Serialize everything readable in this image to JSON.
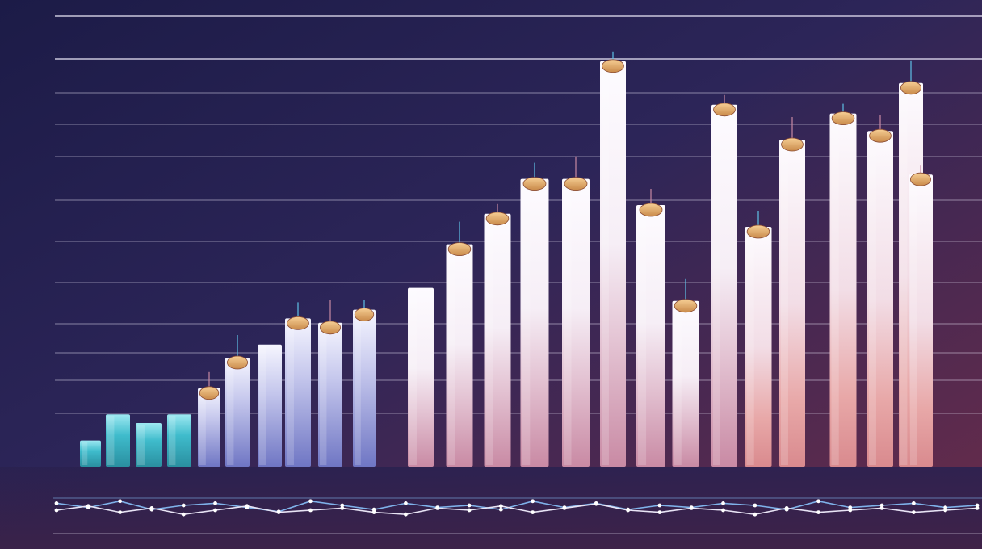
{
  "chart_data": [
    {
      "type": "bar",
      "title": "",
      "xlabel": "",
      "ylabel": "",
      "ylim": [
        0,
        100
      ],
      "grid": true,
      "legend": "none",
      "y_tick_labels": [],
      "values": [
        6,
        12,
        10,
        12,
        18,
        25,
        28,
        34,
        33,
        36,
        41,
        51,
        58,
        66,
        66,
        93,
        60,
        38,
        83,
        55,
        75,
        81,
        77,
        88,
        67
      ],
      "cap_present": [
        false,
        false,
        false,
        false,
        true,
        true,
        false,
        true,
        true,
        true,
        false,
        true,
        true,
        true,
        true,
        true,
        true,
        true,
        true,
        true,
        true,
        true,
        true,
        true,
        true
      ],
      "colors": {
        "background_top": "#1e1d4a",
        "background_bottom": "#5a2747",
        "grid_line": "#e8e4f5",
        "bar_light": "#fbf9fe",
        "bar_pink": "#e8b8c8",
        "bar_teal": "#2aa0a8",
        "bar_cyan": "#5fd0e0",
        "bar_indigo": "#5b56b0",
        "cap": "#e0a665",
        "cap_dark": "#b86a55"
      }
    },
    {
      "type": "line",
      "series_count": 2,
      "values_a": [
        3,
        5,
        2,
        6,
        4,
        3,
        5,
        7,
        2,
        4,
        6,
        3,
        5,
        4,
        6,
        2,
        5,
        3,
        6,
        4,
        5,
        3,
        4,
        6,
        2,
        5,
        4,
        3,
        5,
        4
      ],
      "values_b": [
        4,
        2,
        5,
        3,
        6,
        4,
        2,
        5,
        4,
        3,
        5,
        6,
        3,
        4,
        2,
        5,
        3,
        1,
        4,
        5,
        3,
        4,
        6,
        3,
        5,
        4,
        3,
        5,
        4,
        3
      ],
      "y_tick_labels": [],
      "colors": {
        "line_a": "#7fb2ea",
        "line_b": "#e8e4f5",
        "marker": "#ffffff"
      }
    }
  ]
}
